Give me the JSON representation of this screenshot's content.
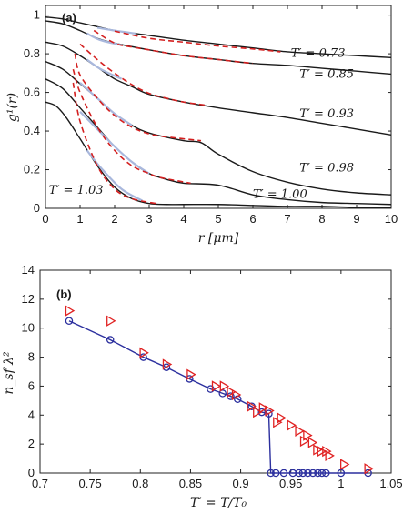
{
  "chart_data": [
    {
      "type": "line",
      "panel_label": "(a)",
      "xlabel": "r [μm]",
      "ylabel": "g¹(r)",
      "xlim": [
        0,
        10
      ],
      "ylim": [
        0,
        1.05
      ],
      "xticks": [
        "0",
        "1",
        "2",
        "3",
        "4",
        "5",
        "6",
        "7",
        "8",
        "9",
        "10"
      ],
      "yticks": [
        "0",
        "0.2",
        "0.4",
        "0.6",
        "0.8",
        "1"
      ],
      "series": [
        {
          "name": "T′ = 0.73",
          "color": "#1a1a1a",
          "x": [
            0,
            0.5,
            1,
            1.5,
            2,
            3,
            4,
            5,
            6,
            7,
            8,
            9,
            10
          ],
          "y": [
            0.99,
            0.98,
            0.96,
            0.94,
            0.92,
            0.895,
            0.87,
            0.85,
            0.83,
            0.81,
            0.8,
            0.79,
            0.78
          ]
        },
        {
          "name": "T′ = 0.85",
          "color": "#1a1a1a",
          "x": [
            0,
            0.5,
            1,
            1.5,
            2,
            3,
            4,
            5,
            6,
            7,
            8,
            9,
            10
          ],
          "y": [
            0.97,
            0.955,
            0.92,
            0.88,
            0.855,
            0.82,
            0.79,
            0.77,
            0.75,
            0.74,
            0.725,
            0.71,
            0.695
          ]
        },
        {
          "name": "T′ = 0.93",
          "color": "#1a1a1a",
          "x": [
            0,
            0.5,
            1,
            1.5,
            2,
            2.5,
            3,
            4,
            5,
            6,
            7,
            8,
            9,
            10
          ],
          "y": [
            0.86,
            0.84,
            0.79,
            0.73,
            0.67,
            0.63,
            0.59,
            0.55,
            0.52,
            0.495,
            0.47,
            0.44,
            0.41,
            0.38
          ]
        },
        {
          "name": "T′ = 0.98",
          "color": "#1a1a1a",
          "x": [
            0,
            0.5,
            1,
            1.5,
            2,
            2.5,
            3,
            4,
            4.5,
            5,
            6,
            7,
            8,
            9,
            10
          ],
          "y": [
            0.76,
            0.72,
            0.645,
            0.57,
            0.49,
            0.43,
            0.39,
            0.35,
            0.34,
            0.28,
            0.19,
            0.135,
            0.1,
            0.08,
            0.07
          ]
        },
        {
          "name": "T′ = 1.00",
          "color": "#1a1a1a",
          "x": [
            0,
            0.5,
            1,
            1.5,
            2,
            2.5,
            3,
            3.5,
            4,
            5,
            6,
            7,
            8,
            9,
            10
          ],
          "y": [
            0.67,
            0.62,
            0.52,
            0.42,
            0.32,
            0.24,
            0.18,
            0.15,
            0.13,
            0.12,
            0.07,
            0.045,
            0.03,
            0.025,
            0.02
          ]
        },
        {
          "name": "T′ = 1.03",
          "color": "#1a1a1a",
          "x": [
            0,
            0.3,
            0.6,
            1,
            1.5,
            2,
            2.5,
            3,
            3.5,
            4,
            5,
            6,
            7,
            8,
            9,
            10
          ],
          "y": [
            0.55,
            0.53,
            0.47,
            0.36,
            0.22,
            0.11,
            0.05,
            0.025,
            0.02,
            0.02,
            0.02,
            0.015,
            0.01,
            0.01,
            0.005,
            0.005
          ]
        }
      ],
      "fits": [
        {
          "color": "#d42020",
          "x": [
            2,
            3,
            4,
            5,
            6,
            6.8
          ],
          "y": [
            0.917,
            0.88,
            0.86,
            0.84,
            0.825,
            0.81
          ]
        },
        {
          "color": "#d42020",
          "x": [
            1.4,
            2,
            2.5,
            3,
            4,
            5,
            6
          ],
          "y": [
            0.92,
            0.855,
            0.835,
            0.82,
            0.79,
            0.77,
            0.75
          ]
        },
        {
          "color": "#d42020",
          "x": [
            1,
            1.5,
            2,
            2.5,
            3,
            3.5,
            4,
            4.6
          ],
          "y": [
            0.85,
            0.77,
            0.7,
            0.64,
            0.595,
            0.57,
            0.55,
            0.535
          ]
        },
        {
          "color": "#d42020",
          "x": [
            0.85,
            1,
            1.5,
            2,
            2.5,
            3,
            3.5,
            4.5
          ],
          "y": [
            0.8,
            0.69,
            0.57,
            0.48,
            0.42,
            0.385,
            0.37,
            0.35
          ]
        },
        {
          "color": "#d42020",
          "x": [
            0.8,
            1,
            1.5,
            2,
            2.5,
            3,
            3.3,
            4.2
          ],
          "y": [
            0.72,
            0.6,
            0.42,
            0.3,
            0.22,
            0.18,
            0.16,
            0.13
          ]
        },
        {
          "color": "#d42020",
          "x": [
            0.8,
            1,
            1.5,
            2,
            2.5,
            3.2
          ],
          "y": [
            0.65,
            0.45,
            0.22,
            0.1,
            0.05,
            0.025
          ]
        }
      ],
      "ref_curves": [
        {
          "color": "#a9b8dd",
          "x": [
            1.5,
            2,
            2.6
          ],
          "y": [
            0.935,
            0.92,
            0.905
          ]
        },
        {
          "color": "#a9b8dd",
          "x": [
            1.2,
            1.6,
            2.2
          ],
          "y": [
            0.905,
            0.87,
            0.845
          ]
        },
        {
          "color": "#a9b8dd",
          "x": [
            1.2,
            1.6,
            2.2
          ],
          "y": [
            0.77,
            0.72,
            0.67
          ]
        },
        {
          "color": "#a9b8dd",
          "x": [
            1,
            1.5,
            2,
            2.5
          ],
          "y": [
            0.65,
            0.57,
            0.49,
            0.43
          ]
        },
        {
          "color": "#a9b8dd",
          "x": [
            1,
            1.5,
            2,
            2.5,
            3
          ],
          "y": [
            0.5,
            0.41,
            0.32,
            0.24,
            0.18
          ]
        },
        {
          "color": "#a9b8dd",
          "x": [
            1.2,
            1.6,
            2.2,
            2.8
          ],
          "y": [
            0.3,
            0.21,
            0.1,
            0.04
          ]
        }
      ],
      "annotations": [
        {
          "text": "T′ = 0.73",
          "x": 7.1,
          "y": 0.785
        },
        {
          "text": "T′ = 0.85",
          "x": 7.35,
          "y": 0.675
        },
        {
          "text": "T′ = 0.93",
          "x": 7.35,
          "y": 0.47
        },
        {
          "text": "T′ = 0.98",
          "x": 7.35,
          "y": 0.19
        },
        {
          "text": "T′ = 1.00",
          "x": 6.0,
          "y": 0.055
        },
        {
          "text": "T′ = 1.03",
          "x": 0.1,
          "y": 0.075
        }
      ]
    },
    {
      "type": "scatter",
      "panel_label": "(b)",
      "xlabel": "T′ = T/T₀",
      "ylabel": "n_sf λ²",
      "xlim": [
        0.7,
        1.05
      ],
      "ylim": [
        0,
        14
      ],
      "xticks": [
        "0.7",
        "0.75",
        "0.8",
        "0.85",
        "0.9",
        "0.95",
        "1",
        "1.05"
      ],
      "yticks": [
        "0",
        "2",
        "4",
        "6",
        "8",
        "10",
        "12",
        "14"
      ],
      "series": [
        {
          "name": "circles",
          "marker": "circle",
          "color": "#2b2f9e",
          "connected": true,
          "x": [
            0.729,
            0.77,
            0.803,
            0.826,
            0.849,
            0.87,
            0.882,
            0.89,
            0.897,
            0.911,
            0.921,
            0.928,
            0.93,
            0.935,
            0.943,
            0.952,
            0.958,
            0.962,
            0.967,
            0.972,
            0.977,
            0.981,
            0.985,
            1.0,
            1.027
          ],
          "y": [
            10.5,
            9.2,
            8.0,
            7.3,
            6.5,
            5.8,
            5.5,
            5.3,
            5.1,
            4.6,
            4.2,
            4.1,
            0,
            0,
            0,
            0,
            0,
            0,
            0,
            0,
            0,
            0,
            0,
            0,
            0
          ]
        },
        {
          "name": "triangles",
          "marker": "triangle-right",
          "color": "#e02222",
          "connected": false,
          "x": [
            0.729,
            0.77,
            0.803,
            0.826,
            0.85,
            0.875,
            0.883,
            0.89,
            0.895,
            0.91,
            0.916,
            0.922,
            0.928,
            0.936,
            0.94,
            0.95,
            0.958,
            0.963,
            0.966,
            0.971,
            0.976,
            0.98,
            0.985,
            0.988,
            1.003,
            1.027
          ],
          "y": [
            11.2,
            10.5,
            8.3,
            7.5,
            6.8,
            6.0,
            6.0,
            5.6,
            5.4,
            4.6,
            4.2,
            4.5,
            4.3,
            3.5,
            3.8,
            3.3,
            2.9,
            2.2,
            2.6,
            2.1,
            1.6,
            1.5,
            1.5,
            1.2,
            0.6,
            0.3
          ]
        }
      ]
    }
  ]
}
